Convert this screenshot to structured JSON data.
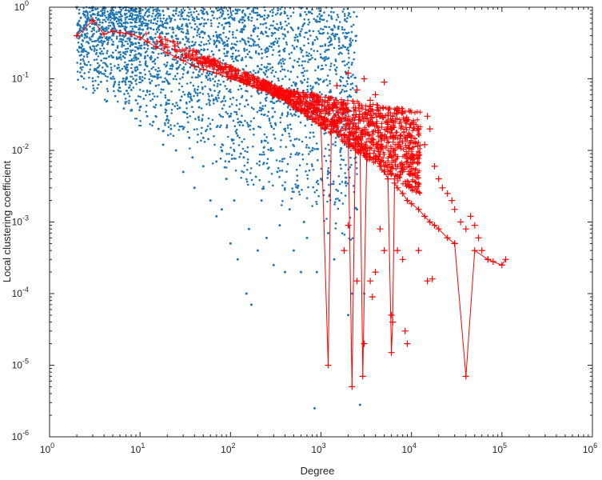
{
  "chart_data": {
    "type": "scatter",
    "title": "",
    "xlabel": "Degree",
    "ylabel": "Local clustering coefficient",
    "xscale": "log",
    "yscale": "log",
    "xlim": [
      1,
      1000000
    ],
    "ylim": [
      1e-06,
      1
    ],
    "grid": false,
    "legend": "none",
    "x_ticks": [
      {
        "value": 1,
        "base": "10",
        "exp": "0"
      },
      {
        "value": 10,
        "base": "10",
        "exp": "1"
      },
      {
        "value": 100,
        "base": "10",
        "exp": "2"
      },
      {
        "value": 1000,
        "base": "10",
        "exp": "3"
      },
      {
        "value": 10000,
        "base": "10",
        "exp": "4"
      },
      {
        "value": 100000,
        "base": "10",
        "exp": "5"
      },
      {
        "value": 1000000,
        "base": "10",
        "exp": "6"
      }
    ],
    "y_ticks": [
      {
        "value": 1e-06,
        "base": "10",
        "exp": "-6"
      },
      {
        "value": 1e-05,
        "base": "10",
        "exp": "-5"
      },
      {
        "value": 0.0001,
        "base": "10",
        "exp": "-4"
      },
      {
        "value": 0.001,
        "base": "10",
        "exp": "-3"
      },
      {
        "value": 0.01,
        "base": "10",
        "exp": "-2"
      },
      {
        "value": 0.1,
        "base": "10",
        "exp": "-1"
      },
      {
        "value": 1,
        "base": "10",
        "exp": "0"
      }
    ],
    "series": [
      {
        "marker": "dot",
        "color": "#1f77b4",
        "points": [
          [
            2,
            1
          ],
          [
            3,
            1
          ],
          [
            3,
            0.5
          ],
          [
            4,
            0.5
          ],
          [
            4,
            0.33
          ],
          [
            5,
            0.3
          ],
          [
            5,
            0.2
          ],
          [
            6,
            0.4
          ],
          [
            6,
            0.2
          ],
          [
            6,
            0.13
          ],
          [
            7,
            0.14
          ],
          [
            7,
            0.1
          ],
          [
            8,
            0.3
          ],
          [
            8,
            0.07
          ],
          [
            9,
            0.05
          ],
          [
            9,
            0.2
          ],
          [
            10,
            0.04
          ],
          [
            10,
            0.1
          ],
          [
            12,
            0.03
          ],
          [
            12,
            0.15
          ],
          [
            14,
            0.025
          ],
          [
            15,
            0.08
          ],
          [
            16,
            0.02
          ],
          [
            18,
            0.012
          ],
          [
            20,
            0.03
          ],
          [
            20,
            0.6
          ],
          [
            22,
            0.02
          ],
          [
            25,
            0.01
          ],
          [
            25,
            0.4
          ],
          [
            28,
            0.05
          ],
          [
            30,
            0.02
          ],
          [
            30,
            0.005
          ],
          [
            32,
            0.2
          ],
          [
            35,
            0.015
          ],
          [
            38,
            0.008
          ],
          [
            40,
            0.003
          ],
          [
            40,
            0.3
          ],
          [
            45,
            0.04
          ],
          [
            50,
            0.006
          ],
          [
            50,
            0.015
          ],
          [
            55,
            0.12
          ],
          [
            60,
            0.002
          ],
          [
            60,
            0.02
          ],
          [
            65,
            0.05
          ],
          [
            70,
            0.007
          ],
          [
            70,
            0.0012
          ],
          [
            75,
            0.25
          ],
          [
            80,
            0.0015
          ],
          [
            80,
            0.01
          ],
          [
            90,
            0.004
          ],
          [
            90,
            0.6
          ],
          [
            100,
            0.0005
          ],
          [
            100,
            0.03
          ],
          [
            110,
            0.002
          ],
          [
            120,
            0.0003
          ],
          [
            130,
            0.009
          ],
          [
            140,
            0.008
          ],
          [
            150,
            0.0001
          ],
          [
            150,
            0.05
          ],
          [
            160,
            0.0008
          ],
          [
            170,
            7e-05
          ],
          [
            180,
            0.02
          ],
          [
            200,
            0.0004
          ],
          [
            200,
            0.15
          ],
          [
            220,
            0.002
          ],
          [
            250,
            0.0006
          ],
          [
            280,
            0.01
          ],
          [
            300,
            0.00025
          ],
          [
            300,
            0.3
          ],
          [
            330,
            0.005
          ],
          [
            350,
            0.0009
          ],
          [
            400,
            0.0002
          ],
          [
            400,
            0.02
          ],
          [
            450,
            0.0015
          ],
          [
            500,
            0.0004
          ],
          [
            500,
            0.07
          ],
          [
            550,
            0.003
          ],
          [
            600,
            0.0002
          ],
          [
            650,
            0.001
          ],
          [
            700,
            0.0006
          ],
          [
            800,
            0.01
          ],
          [
            850,
            2.5e-06
          ],
          [
            900,
            0.0002
          ],
          [
            1000,
            0.004
          ],
          [
            1000,
            0.2
          ],
          [
            1200,
            0.0007
          ],
          [
            1400,
            0.0003
          ],
          [
            1600,
            0.002
          ],
          [
            1800,
            0.05
          ],
          [
            2000,
            5e-05
          ],
          [
            2200,
            0.0001
          ],
          [
            2500,
            0.0015
          ],
          [
            2700,
            2.8e-06
          ],
          [
            3000,
            0.0001
          ]
        ],
        "band_density_note": "dense"
      },
      {
        "marker": "plus-line",
        "color": "#ff0000",
        "points": [
          [
            2,
            0.4
          ],
          [
            3,
            0.65
          ],
          [
            4,
            0.42
          ],
          [
            5,
            0.46
          ],
          [
            6,
            0.44
          ],
          [
            7,
            0.43
          ],
          [
            8,
            0.42
          ],
          [
            10,
            0.38
          ],
          [
            12,
            0.33
          ],
          [
            15,
            0.28
          ],
          [
            20,
            0.23
          ],
          [
            25,
            0.2
          ],
          [
            30,
            0.18
          ],
          [
            40,
            0.15
          ],
          [
            50,
            0.135
          ],
          [
            70,
            0.12
          ],
          [
            100,
            0.1
          ],
          [
            150,
            0.085
          ],
          [
            200,
            0.075
          ],
          [
            300,
            0.06
          ],
          [
            400,
            0.05
          ],
          [
            500,
            0.04
          ],
          [
            600,
            0.035
          ],
          [
            700,
            0.03
          ],
          [
            800,
            0.027
          ],
          [
            1000,
            0.022
          ],
          [
            1200,
            1e-05
          ],
          [
            1300,
            0.02
          ],
          [
            1500,
            0.018
          ],
          [
            1800,
            0.016
          ],
          [
            2000,
            0.014
          ],
          [
            2200,
            5e-06
          ],
          [
            2400,
            0.012
          ],
          [
            2700,
            0.01
          ],
          [
            2900,
            7e-06
          ],
          [
            3200,
            0.009
          ],
          [
            3500,
            0.008
          ],
          [
            4000,
            0.0075
          ],
          [
            4500,
            0.006
          ],
          [
            5000,
            0.005
          ],
          [
            5500,
            0.004
          ],
          [
            6000,
            1.5e-05
          ],
          [
            6200,
            4e-05
          ],
          [
            6500,
            0.0035
          ],
          [
            7000,
            0.003
          ],
          [
            8000,
            0.0025
          ],
          [
            9000,
            0.002
          ],
          [
            10000,
            0.0018
          ],
          [
            12000,
            0.0015
          ],
          [
            14000,
            0.0012
          ],
          [
            16000,
            0.001
          ],
          [
            18000,
            0.0009
          ],
          [
            20000,
            0.0008
          ],
          [
            25000,
            0.0006
          ],
          [
            30000,
            0.0005
          ],
          [
            40000,
            7e-06
          ],
          [
            50000,
            0.0004
          ],
          [
            70000,
            0.0003
          ],
          [
            100000,
            0.00025
          ],
          [
            110000,
            0.0003
          ]
        ],
        "scatter_extras": [
          [
            1500,
            0.08
          ],
          [
            2000,
            0.12
          ],
          [
            2500,
            0.07
          ],
          [
            3000,
            0.1
          ],
          [
            3500,
            0.05
          ],
          [
            4000,
            0.06
          ],
          [
            4500,
            0.03
          ],
          [
            5000,
            0.09
          ],
          [
            6000,
            0.02
          ],
          [
            6500,
            0.004
          ],
          [
            7000,
            0.012
          ],
          [
            8000,
            0.006
          ],
          [
            9000,
            0.015
          ],
          [
            10000,
            0.008
          ],
          [
            12000,
            0.02
          ],
          [
            14000,
            0.012
          ],
          [
            15000,
            0.03
          ],
          [
            16000,
            0.02
          ],
          [
            18000,
            0.006
          ],
          [
            20000,
            0.004
          ],
          [
            22000,
            0.003
          ],
          [
            25000,
            0.0025
          ],
          [
            28000,
            0.002
          ],
          [
            30000,
            0.0015
          ],
          [
            35000,
            0.001
          ],
          [
            40000,
            0.0008
          ],
          [
            45000,
            0.0012
          ],
          [
            50000,
            0.0009
          ],
          [
            55000,
            0.0006
          ],
          [
            60000,
            0.0004
          ],
          [
            70000,
            0.0003
          ],
          [
            80000,
            0.00028
          ],
          [
            15000,
            0.00015
          ],
          [
            17000,
            0.00016
          ],
          [
            9000,
            2e-05
          ],
          [
            8000,
            0.0003
          ],
          [
            7000,
            0.0004
          ],
          [
            5000,
            0.0004
          ],
          [
            3000,
            2e-05
          ],
          [
            2000,
            0.0009
          ],
          [
            1800,
            0.0004
          ],
          [
            4000,
            0.0002
          ],
          [
            3500,
            0.00015
          ],
          [
            3700,
            9e-05
          ],
          [
            2500,
            0.00015
          ],
          [
            4500,
            0.0008
          ],
          [
            6000,
            5e-05
          ],
          [
            8500,
            3e-05
          ],
          [
            12000,
            0.0004
          ],
          [
            30000,
            0.0005
          ]
        ]
      }
    ]
  }
}
